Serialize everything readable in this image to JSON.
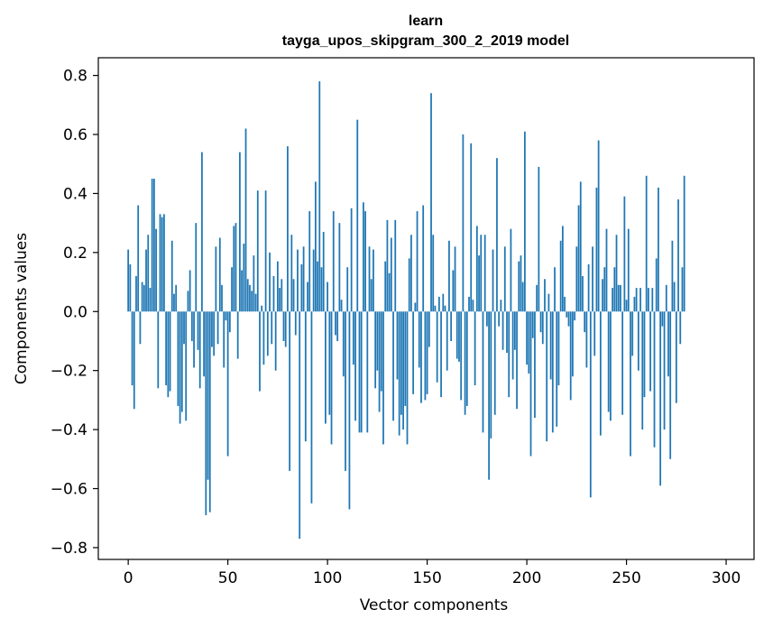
{
  "chart_data": {
    "type": "bar",
    "title": "learn",
    "subtitle": "tayga_upos_skipgram_300_2_2019 model",
    "xlabel": "Vector components",
    "ylabel": "Components values",
    "xlim": [
      -15,
      314
    ],
    "ylim": [
      -0.84,
      0.86
    ],
    "x_ticks": [
      0,
      50,
      100,
      150,
      200,
      250,
      300
    ],
    "y_ticks": [
      -0.8,
      -0.6,
      -0.4,
      -0.2,
      0.0,
      0.2,
      0.4,
      0.6,
      0.8
    ],
    "y_tick_labels": [
      "−0.8",
      "−0.6",
      "−0.4",
      "−0.2",
      "0.0",
      "0.2",
      "0.4",
      "0.6",
      "0.8"
    ],
    "bar_color": "#1f77b4",
    "values": [
      0.21,
      0.16,
      -0.25,
      -0.33,
      0.12,
      0.36,
      -0.11,
      0.1,
      0.09,
      0.21,
      0.26,
      0.08,
      0.45,
      0.45,
      0.28,
      -0.26,
      0.33,
      0.32,
      0.33,
      -0.25,
      -0.29,
      -0.27,
      0.24,
      0.06,
      0.09,
      -0.32,
      -0.38,
      -0.34,
      -0.11,
      -0.37,
      0.07,
      0.14,
      -0.1,
      -0.19,
      0.3,
      -0.13,
      -0.26,
      0.54,
      -0.22,
      -0.69,
      -0.57,
      -0.68,
      -0.12,
      -0.15,
      0.22,
      -0.11,
      0.25,
      0.09,
      -0.19,
      -0.03,
      -0.49,
      -0.07,
      0.15,
      0.29,
      0.3,
      -0.16,
      0.54,
      0.14,
      0.23,
      0.62,
      0.11,
      0.09,
      0.07,
      0.19,
      0.06,
      0.41,
      -0.27,
      0.02,
      -0.18,
      0.41,
      -0.15,
      0.2,
      -0.11,
      0.12,
      -0.2,
      0.17,
      0.08,
      0.11,
      -0.1,
      -0.12,
      0.56,
      -0.54,
      0.26,
      0.11,
      -0.08,
      0.21,
      -0.77,
      0.16,
      0.22,
      -0.44,
      0.1,
      0.34,
      -0.65,
      0.21,
      0.44,
      0.17,
      0.78,
      0.15,
      0.27,
      -0.38,
      0.1,
      -0.35,
      -0.45,
      0.34,
      -0.08,
      -0.1,
      0.3,
      0.04,
      -0.22,
      -0.54,
      0.15,
      -0.67,
      0.35,
      -0.18,
      -0.37,
      0.65,
      -0.41,
      -0.41,
      0.37,
      0.34,
      -0.41,
      0.22,
      0.11,
      0.21,
      -0.26,
      -0.2,
      -0.34,
      -0.27,
      -0.45,
      0.17,
      0.31,
      0.13,
      0.25,
      -0.37,
      0.31,
      -0.23,
      -0.42,
      -0.35,
      -0.4,
      -0.32,
      -0.45,
      0.18,
      0.26,
      -0.28,
      0.03,
      0.34,
      -0.19,
      -0.31,
      0.36,
      -0.3,
      -0.28,
      -0.12,
      0.74,
      0.26,
      0.02,
      -0.24,
      0.05,
      -0.29,
      0.06,
      0.02,
      -0.2,
      0.24,
      -0.1,
      0.14,
      0.22,
      -0.16,
      -0.17,
      -0.3,
      0.6,
      -0.35,
      -0.32,
      0.05,
      0.57,
      0.04,
      -0.25,
      0.29,
      0.19,
      0.26,
      -0.41,
      0.26,
      -0.05,
      -0.57,
      -0.43,
      0.21,
      -0.35,
      0.52,
      -0.05,
      0.04,
      -0.13,
      0.22,
      -0.14,
      -0.29,
      0.28,
      -0.23,
      -0.13,
      -0.33,
      0.17,
      0.19,
      0.1,
      0.61,
      -0.18,
      -0.21,
      -0.49,
      -0.09,
      -0.36,
      0.09,
      0.49,
      -0.07,
      -0.11,
      0.11,
      -0.44,
      0.06,
      -0.23,
      -0.41,
      0.15,
      -0.39,
      -0.25,
      0.24,
      0.29,
      0.05,
      -0.02,
      -0.05,
      -0.3,
      -0.22,
      -0.03,
      0.22,
      0.36,
      0.44,
      0.12,
      -0.07,
      -0.19,
      0.16,
      -0.63,
      0.22,
      -0.15,
      0.42,
      0.58,
      -0.42,
      0.11,
      0.15,
      0.28,
      -0.34,
      -0.37,
      0.08,
      0.15,
      0.26,
      0.09,
      0.09,
      -0.35,
      0.39,
      0.04,
      0.28,
      -0.49,
      -0.15,
      0.05,
      0.08,
      -0.2,
      0.08,
      -0.4,
      -0.29,
      0.46,
      0.08,
      -0.27,
      0.08,
      -0.46,
      0.18,
      0.42,
      -0.59,
      -0.05,
      -0.4,
      0.09,
      -0.22,
      -0.5,
      0.24,
      0.1,
      -0.31,
      0.38,
      -0.11,
      0.15,
      0.46
    ]
  }
}
